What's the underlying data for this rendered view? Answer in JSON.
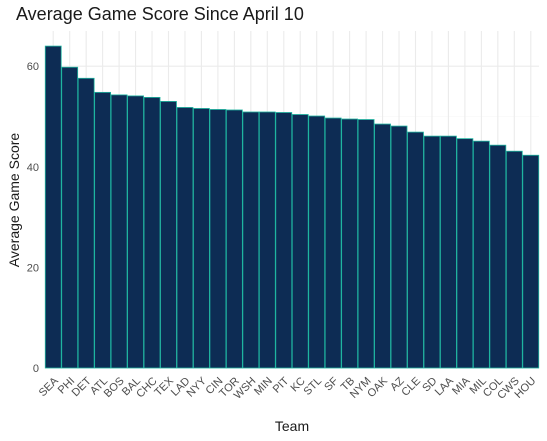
{
  "chart_data": {
    "type": "bar",
    "title": "Average Game Score Since April 10",
    "xlabel": "Team",
    "ylabel": "Average Game Score",
    "categories": [
      "SEA",
      "PHI",
      "DET",
      "ATL",
      "BOS",
      "BAL",
      "CHC",
      "TEX",
      "LAD",
      "NYY",
      "CIN",
      "TOR",
      "WSH",
      "MIN",
      "PIT",
      "KC",
      "STL",
      "SF",
      "TB",
      "NYM",
      "OAK",
      "AZ",
      "CLE",
      "SD",
      "LAA",
      "MIA",
      "MIL",
      "COL",
      "CWS",
      "HOU"
    ],
    "values": [
      64.0,
      59.8,
      57.6,
      54.8,
      54.3,
      54.1,
      53.8,
      53.0,
      51.8,
      51.6,
      51.4,
      51.3,
      50.9,
      50.9,
      50.8,
      50.4,
      50.1,
      49.7,
      49.5,
      49.4,
      48.5,
      48.1,
      46.9,
      46.1,
      46.1,
      45.6,
      45.1,
      44.3,
      43.1,
      42.3
    ],
    "ylim": [
      0,
      67
    ],
    "yticks": [
      0,
      20,
      40,
      60
    ],
    "grid": true,
    "colors": {
      "bar_fill": "#0d2c54",
      "bar_outline": "#1fb5a0",
      "grid_major": "#ebebeb",
      "grid_minor": "#f5f5f5"
    }
  }
}
